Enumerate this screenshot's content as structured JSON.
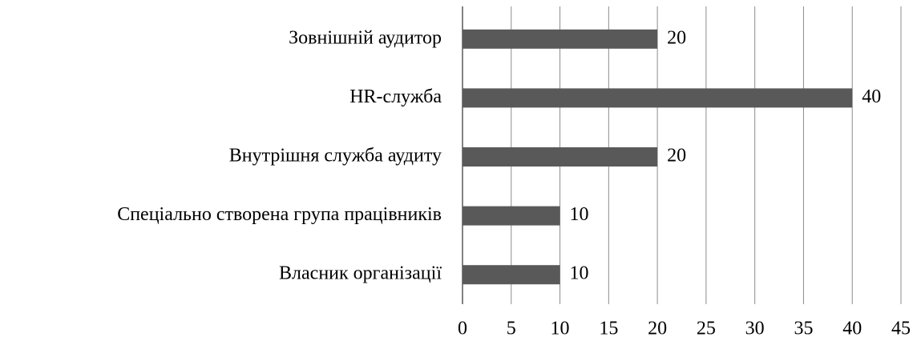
{
  "chart_data": {
    "type": "hbar",
    "categories": [
      "Зовнішній аудитор",
      "HR-служба",
      "Внутрішня служба аудиту",
      "Спеціально створена група працівників",
      "Власник організації"
    ],
    "values": [
      20,
      40,
      20,
      10,
      10
    ],
    "color": "#595959",
    "xlim": [
      0,
      45
    ],
    "xticks": [
      0,
      5,
      10,
      15,
      20,
      25,
      30,
      35,
      40,
      45
    ],
    "grid": true
  }
}
